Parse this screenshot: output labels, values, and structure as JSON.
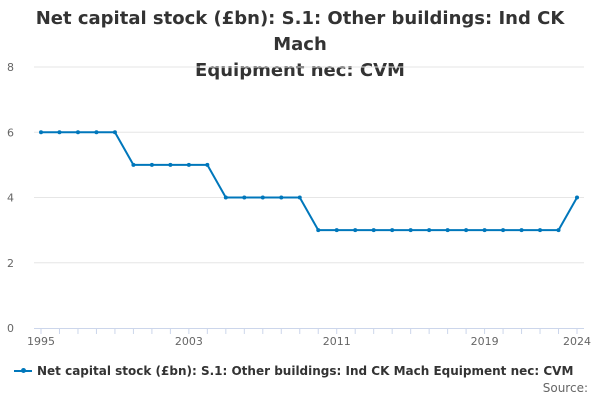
{
  "colors": {
    "series": "#0077bb",
    "grid": "#e6e6e6",
    "axis": "#ccd6eb",
    "text": "#333333",
    "tick": "#666666"
  },
  "legend_label": "Net capital stock (£bn): S.1: Other buildings: Ind CK Mach Equipment nec: CVM",
  "source_label": "Source:",
  "chart_data": {
    "type": "line",
    "title_lines": [
      "Net capital stock (£bn): S.1: Other buildings: Ind CK Mach",
      "Equipment nec: CVM"
    ],
    "xlabel": "",
    "ylabel": "",
    "ylim": [
      0,
      8
    ],
    "yticks": [
      0,
      2,
      4,
      6,
      8
    ],
    "xticks": [
      1995,
      2003,
      2011,
      2019,
      2024
    ],
    "xlim": [
      1995,
      2024
    ],
    "grid": true,
    "legend_position": "bottom",
    "series": [
      {
        "name": "Net capital stock (£bn): S.1: Other buildings: Ind CK Mach Equipment nec: CVM",
        "x": [
          1995,
          1996,
          1997,
          1998,
          1999,
          2000,
          2001,
          2002,
          2003,
          2004,
          2005,
          2006,
          2007,
          2008,
          2009,
          2010,
          2011,
          2012,
          2013,
          2014,
          2015,
          2016,
          2017,
          2018,
          2019,
          2020,
          2021,
          2022,
          2023,
          2024
        ],
        "values": [
          6,
          6,
          6,
          6,
          6,
          5,
          5,
          5,
          5,
          5,
          4,
          4,
          4,
          4,
          4,
          3,
          3,
          3,
          3,
          3,
          3,
          3,
          3,
          3,
          3,
          3,
          3,
          3,
          3,
          4
        ]
      }
    ]
  }
}
